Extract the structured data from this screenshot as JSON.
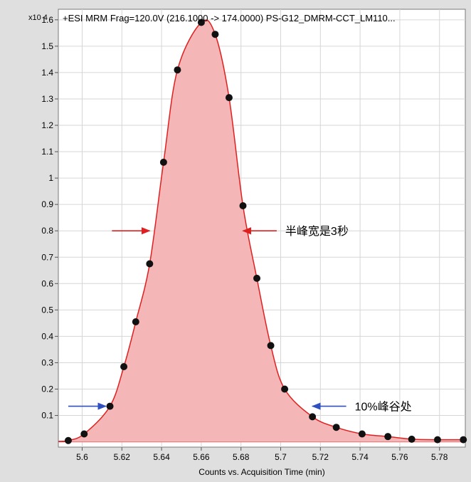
{
  "chart_data": {
    "type": "area",
    "title": "+ESI  MRM  Frag=120.0V  (216.1000  ->  174.0000)  PS-G12_DMRM-CCT_LM110...",
    "xlabel": "Counts vs. Acquisition Time (min)",
    "ylabel": "",
    "y_multiplier": "x10 4",
    "xlim": [
      5.588,
      5.793
    ],
    "ylim": [
      -0.02,
      1.64
    ],
    "x_ticks": [
      "5.6",
      "5.62",
      "5.64",
      "5.66",
      "5.68",
      "5.7",
      "5.72",
      "5.74",
      "5.76",
      "5.78"
    ],
    "y_ticks": [
      "0.1",
      "0.2",
      "0.3",
      "0.4",
      "0.5",
      "0.6",
      "0.7",
      "0.8",
      "0.9",
      "1",
      "1.1",
      "1.2",
      "1.3",
      "1.4",
      "1.5",
      "1.6"
    ],
    "grid": true,
    "fill_color": "#f4b6b6",
    "line_color": "#e02020",
    "point_color": "#111111",
    "points": [
      {
        "x": 5.593,
        "y": 0.005
      },
      {
        "x": 5.601,
        "y": 0.03
      },
      {
        "x": 5.614,
        "y": 0.135
      },
      {
        "x": 5.621,
        "y": 0.285
      },
      {
        "x": 5.627,
        "y": 0.455
      },
      {
        "x": 5.634,
        "y": 0.675
      },
      {
        "x": 5.641,
        "y": 1.06
      },
      {
        "x": 5.648,
        "y": 1.41
      },
      {
        "x": 5.66,
        "y": 1.59
      },
      {
        "x": 5.667,
        "y": 1.545
      },
      {
        "x": 5.674,
        "y": 1.305
      },
      {
        "x": 5.681,
        "y": 0.895
      },
      {
        "x": 5.688,
        "y": 0.62
      },
      {
        "x": 5.695,
        "y": 0.365
      },
      {
        "x": 5.702,
        "y": 0.2
      },
      {
        "x": 5.716,
        "y": 0.095
      },
      {
        "x": 5.728,
        "y": 0.055
      },
      {
        "x": 5.741,
        "y": 0.03
      },
      {
        "x": 5.754,
        "y": 0.02
      },
      {
        "x": 5.766,
        "y": 0.01
      },
      {
        "x": 5.779,
        "y": 0.008
      },
      {
        "x": 5.792,
        "y": 0.008
      }
    ],
    "curve_tails": [
      {
        "x": 5.588,
        "y": 0.002
      },
      {
        "x": 5.793,
        "y": 0.006
      }
    ],
    "annotations": [
      {
        "text": "半峰宽是3秒",
        "color": "#e02020",
        "y": 0.8,
        "x_from": 5.615,
        "x_to": 5.634,
        "x_from_right": 5.698,
        "x_to_right": 5.681
      },
      {
        "text": "10%峰谷处",
        "color": "#3050c0",
        "y": 0.135,
        "x_from": 5.593,
        "x_to": 5.612,
        "x_from_right": 5.733,
        "x_to_right": 5.716
      }
    ]
  }
}
